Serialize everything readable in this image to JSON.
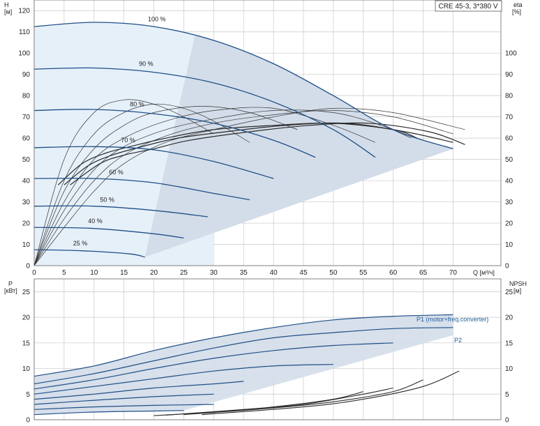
{
  "model_label": "CRE 45-3, 3*380 V",
  "colors": {
    "curve": "#1f4e86",
    "eff_curve": "#2a2a2a",
    "thin_curve": "#333333",
    "region_fill": "#d3dde9",
    "light_fill": "#e6f0f9",
    "grid": "#c8c8c8",
    "label_blue": "#1f5c9a"
  },
  "chart_data": [
    {
      "type": "line",
      "name": "qh",
      "ylabel_left": [
        "H",
        "[м]"
      ],
      "ylabel_right": [
        "eta",
        "[%]"
      ],
      "xlabel": "Q [м³/ч]",
      "xlim": [
        0,
        78
      ],
      "ylim": [
        0,
        125
      ],
      "xticks": [
        0,
        5,
        10,
        15,
        20,
        25,
        30,
        35,
        40,
        45,
        50,
        55,
        60,
        65,
        70
      ],
      "yticks_left": [
        0,
        10,
        20,
        30,
        40,
        50,
        60,
        70,
        80,
        90,
        100,
        110,
        120
      ],
      "yticks_right": [
        0,
        10,
        20,
        30,
        40,
        50,
        60,
        70,
        80,
        90,
        100
      ],
      "speed_curves": [
        {
          "label": "100 %",
          "label_at": [
            19,
            115
          ],
          "points": [
            [
              0,
              112.5
            ],
            [
              10,
              114.5
            ],
            [
              20,
              112.5
            ],
            [
              30,
              106
            ],
            [
              40,
              95
            ],
            [
              50,
              80
            ],
            [
              60,
              64
            ],
            [
              70,
              55
            ]
          ]
        },
        {
          "label": "90 %",
          "label_at": [
            17.5,
            94
          ],
          "points": [
            [
              0,
              92.5
            ],
            [
              10,
              93
            ],
            [
              20,
              91
            ],
            [
              30,
              86
            ],
            [
              40,
              77
            ],
            [
              50,
              64
            ],
            [
              57,
              51
            ]
          ]
        },
        {
          "label": "80 %",
          "label_at": [
            16,
            75
          ],
          "points": [
            [
              0,
              73
            ],
            [
              10,
              73.5
            ],
            [
              20,
              71.5
            ],
            [
              30,
              67
            ],
            [
              40,
              59
            ],
            [
              47,
              51
            ]
          ]
        },
        {
          "label": "70 %",
          "label_at": [
            14.5,
            58
          ],
          "points": [
            [
              0,
              55.5
            ],
            [
              10,
              56
            ],
            [
              20,
              54.5
            ],
            [
              30,
              49
            ],
            [
              40,
              41
            ]
          ]
        },
        {
          "label": "60 %",
          "label_at": [
            12.5,
            43
          ],
          "points": [
            [
              0,
              41
            ],
            [
              10,
              41
            ],
            [
              20,
              39
            ],
            [
              30,
              34
            ],
            [
              36,
              31
            ]
          ]
        },
        {
          "label": "50 %",
          "label_at": [
            11,
            30
          ],
          "points": [
            [
              0,
              28
            ],
            [
              10,
              28
            ],
            [
              20,
              26
            ],
            [
              29,
              23
            ]
          ]
        },
        {
          "label": "40 %",
          "label_at": [
            9,
            20
          ],
          "points": [
            [
              0,
              18
            ],
            [
              10,
              17.5
            ],
            [
              20,
              15
            ],
            [
              25,
              13
            ]
          ]
        },
        {
          "label": "25 %",
          "label_at": [
            6.5,
            9.5
          ],
          "points": [
            [
              0,
              7.5
            ],
            [
              8,
              7
            ],
            [
              16,
              5.5
            ],
            [
              18.5,
              4
            ]
          ]
        }
      ],
      "efficiency_curves": [
        {
          "points": [
            [
              4,
              38
            ],
            [
              8,
              48
            ],
            [
              12,
              53
            ],
            [
              16,
              56
            ],
            [
              22,
              60
            ],
            [
              30,
              64
            ],
            [
              40,
              66
            ],
            [
              50,
              67
            ],
            [
              60,
              64
            ],
            [
              64,
              60
            ]
          ]
        },
        {
          "points": [
            [
              5,
              38
            ],
            [
              9,
              47
            ],
            [
              13,
              52
            ],
            [
              18,
              56
            ],
            [
              24,
              60
            ],
            [
              32,
              63
            ],
            [
              42,
              66
            ],
            [
              52,
              67
            ],
            [
              62,
              63
            ],
            [
              70,
              58
            ]
          ]
        },
        {
          "points": [
            [
              6,
              38
            ],
            [
              11,
              48
            ],
            [
              15,
              52
            ],
            [
              20,
              55
            ],
            [
              26,
              59
            ],
            [
              36,
              63
            ],
            [
              46,
              66
            ],
            [
              56,
              67
            ],
            [
              66,
              63
            ],
            [
              72,
              57
            ]
          ]
        }
      ],
      "eta_curves": [
        {
          "points": [
            [
              0,
              0
            ],
            [
              5,
              50
            ],
            [
              10,
              72
            ],
            [
              15,
              78
            ],
            [
              20,
              76
            ],
            [
              25,
              70
            ],
            [
              30,
              62
            ]
          ]
        },
        {
          "points": [
            [
              0,
              0
            ],
            [
              5,
              40
            ],
            [
              10,
              62
            ],
            [
              15,
              72
            ],
            [
              20,
              76
            ],
            [
              25,
              74
            ],
            [
              30,
              68
            ],
            [
              36,
              58
            ]
          ]
        },
        {
          "points": [
            [
              0,
              0
            ],
            [
              5,
              35
            ],
            [
              10,
              55
            ],
            [
              15,
              66
            ],
            [
              20,
              72
            ],
            [
              28,
              75
            ],
            [
              36,
              72
            ],
            [
              44,
              64
            ]
          ]
        },
        {
          "points": [
            [
              0,
              0
            ],
            [
              5,
              30
            ],
            [
              10,
              50
            ],
            [
              15,
              60
            ],
            [
              22,
              68
            ],
            [
              30,
              73
            ],
            [
              40,
              74
            ],
            [
              50,
              66
            ],
            [
              57,
              58
            ]
          ]
        },
        {
          "points": [
            [
              0,
              0
            ],
            [
              5,
              26
            ],
            [
              10,
              45
            ],
            [
              15,
              56
            ],
            [
              22,
              64
            ],
            [
              30,
              69
            ],
            [
              40,
              73
            ],
            [
              50,
              72
            ],
            [
              58,
              66
            ],
            [
              63,
              60
            ]
          ]
        },
        {
          "points": [
            [
              0,
              0
            ],
            [
              5,
              22
            ],
            [
              10,
              40
            ],
            [
              15,
              52
            ],
            [
              22,
              61
            ],
            [
              30,
              67
            ],
            [
              40,
              71
            ],
            [
              50,
              73
            ],
            [
              60,
              70
            ],
            [
              70,
              62
            ]
          ]
        },
        {
          "points": [
            [
              0,
              0
            ],
            [
              5,
              18
            ],
            [
              10,
              35
            ],
            [
              15,
              48
            ],
            [
              22,
              58
            ],
            [
              30,
              64
            ],
            [
              40,
              70
            ],
            [
              50,
              74
            ],
            [
              60,
              72
            ],
            [
              72,
              64
            ]
          ]
        }
      ]
    },
    {
      "type": "line",
      "name": "power",
      "ylabel_left": [
        "P",
        "[кВт]"
      ],
      "ylabel_right": [
        "NPSH",
        "[м]"
      ],
      "xlim": [
        0,
        78
      ],
      "ylim": [
        0,
        27.5
      ],
      "yticks_left": [
        0,
        5,
        10,
        15,
        20,
        25
      ],
      "yticks_right": [
        0,
        5,
        10,
        15,
        20,
        25
      ],
      "series": [
        {
          "name": "P1 (motor+freq.converter)",
          "points": [
            [
              0,
              8.5
            ],
            [
              10,
              10.5
            ],
            [
              20,
              13.5
            ],
            [
              30,
              16
            ],
            [
              40,
              18
            ],
            [
              50,
              19.5
            ],
            [
              60,
              20.2
            ],
            [
              70,
              20.5
            ]
          ]
        },
        {
          "name": "P2",
          "points": [
            [
              0,
              7
            ],
            [
              10,
              9
            ],
            [
              20,
              11.5
            ],
            [
              30,
              14
            ],
            [
              40,
              16
            ],
            [
              50,
              17
            ],
            [
              60,
              17.8
            ],
            [
              70,
              18
            ]
          ]
        },
        {
          "points": [
            [
              0,
              6
            ],
            [
              10,
              7.8
            ],
            [
              20,
              10
            ],
            [
              30,
              12
            ],
            [
              40,
              13.5
            ],
            [
              50,
              14.5
            ],
            [
              60,
              15
            ]
          ]
        },
        {
          "points": [
            [
              0,
              5
            ],
            [
              10,
              6.5
            ],
            [
              20,
              8
            ],
            [
              30,
              9.5
            ],
            [
              40,
              10.5
            ],
            [
              50,
              10.8
            ]
          ]
        },
        {
          "points": [
            [
              0,
              4
            ],
            [
              10,
              5
            ],
            [
              20,
              6.2
            ],
            [
              30,
              7
            ],
            [
              35,
              7.5
            ]
          ]
        },
        {
          "points": [
            [
              0,
              3
            ],
            [
              10,
              3.8
            ],
            [
              20,
              4.5
            ],
            [
              30,
              5
            ]
          ]
        },
        {
          "points": [
            [
              0,
              2
            ],
            [
              10,
              2.5
            ],
            [
              20,
              2.8
            ],
            [
              30,
              3
            ]
          ]
        },
        {
          "points": [
            [
              0,
              1
            ],
            [
              10,
              1.5
            ],
            [
              20,
              1.7
            ],
            [
              25,
              1.8
            ]
          ]
        }
      ],
      "npsh_curves": [
        {
          "points": [
            [
              20,
              0.8
            ],
            [
              30,
              1.5
            ],
            [
              40,
              2.5
            ],
            [
              50,
              4
            ],
            [
              55,
              5.5
            ]
          ]
        },
        {
          "points": [
            [
              22,
              0.9
            ],
            [
              35,
              2
            ],
            [
              45,
              3
            ],
            [
              55,
              5
            ],
            [
              60,
              6.2
            ]
          ]
        },
        {
          "points": [
            [
              25,
              1
            ],
            [
              40,
              2.3
            ],
            [
              50,
              3.5
            ],
            [
              60,
              5.5
            ],
            [
              65,
              7.8
            ]
          ]
        },
        {
          "points": [
            [
              28,
              1
            ],
            [
              45,
              2.5
            ],
            [
              55,
              4
            ],
            [
              65,
              6.5
            ],
            [
              71,
              9.5
            ]
          ]
        }
      ]
    }
  ]
}
